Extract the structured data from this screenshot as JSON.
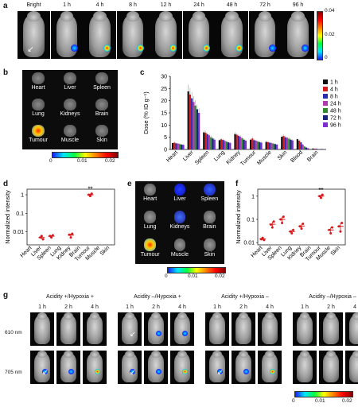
{
  "panels": {
    "a": "a",
    "b": "b",
    "c": "c",
    "d": "d",
    "e": "e",
    "f": "f",
    "g": "g"
  },
  "panel_a": {
    "timepoints": [
      "Bright",
      "1 h",
      "4 h",
      "8 h",
      "12 h",
      "24 h",
      "48 h",
      "72 h",
      "96 h"
    ],
    "colorbar_ticks": [
      "0.04",
      "0.02",
      "0"
    ]
  },
  "panel_b": {
    "organs": [
      "Heart",
      "Liver",
      "Spleen",
      "Lung",
      "Kidneys",
      "Brain",
      "Tumour",
      "Muscle",
      "Skin"
    ],
    "colorbar_ticks": [
      "0",
      "0.01",
      "0.02"
    ]
  },
  "panel_e": {
    "organs": [
      "Heart",
      "Liver",
      "Spleen",
      "Lung",
      "Kidneys",
      "Brain",
      "Tumour",
      "Muscle",
      "Skin"
    ],
    "colorbar_ticks": [
      "0",
      "0.01",
      "0.02"
    ]
  },
  "panel_g": {
    "conditions": [
      "Acidity +/Hypoxia +",
      "Acidity –/Hypoxia +",
      "Acidity +/Hypoxia –",
      "Acidity –/Hypoxia –"
    ],
    "times": [
      "1 h",
      "2 h",
      "4 h"
    ],
    "rows": [
      "610 nm",
      "705 nm"
    ],
    "colorbar_ticks": [
      "0",
      "0.01",
      "0.02"
    ]
  },
  "colors": {
    "series": [
      "#111111",
      "#d7191c",
      "#2c2cb0",
      "#b03ab0",
      "#2e8b2e",
      "#1a237e",
      "#7b2fd0"
    ],
    "marker": "#d7191c"
  },
  "chart_data": [
    {
      "panel": "c",
      "type": "bar",
      "ylabel": "Dose (% ID g⁻¹)",
      "ylim": [
        0,
        30
      ],
      "yticks": [
        "0",
        "5",
        "10",
        "15",
        "20",
        "25",
        "30"
      ],
      "categories": [
        "Heart",
        "Liver",
        "Spleen",
        "Lung",
        "Kidney",
        "Tumour",
        "Muscle",
        "Skin",
        "Blood",
        "Brain"
      ],
      "series": [
        {
          "name": "1 h",
          "values": [
            2.6,
            23.8,
            7.0,
            3.8,
            6.3,
            4.0,
            3.1,
            5.2,
            4.2,
            0.4
          ]
        },
        {
          "name": "4 h",
          "values": [
            2.8,
            22.5,
            6.8,
            4.2,
            6.0,
            4.5,
            3.0,
            5.5,
            3.6,
            0.3
          ]
        },
        {
          "name": "8 h",
          "values": [
            2.5,
            21.0,
            6.2,
            3.9,
            5.6,
            3.8,
            2.8,
            5.0,
            2.9,
            0.3
          ]
        },
        {
          "name": "24 h",
          "values": [
            2.4,
            19.5,
            5.8,
            3.5,
            5.2,
            3.6,
            2.6,
            4.8,
            2.0,
            0.2
          ]
        },
        {
          "name": "48 h",
          "values": [
            2.2,
            18.0,
            5.0,
            3.2,
            4.6,
            3.3,
            2.4,
            4.4,
            1.2,
            0.2
          ]
        },
        {
          "name": "72 h",
          "values": [
            2.0,
            16.5,
            4.5,
            2.9,
            4.0,
            3.0,
            2.2,
            4.0,
            0.8,
            0.2
          ]
        },
        {
          "name": "96 h",
          "values": [
            1.9,
            15.0,
            4.0,
            2.7,
            3.6,
            2.8,
            2.0,
            3.7,
            0.5,
            0.1
          ]
        }
      ],
      "legend": "right"
    },
    {
      "panel": "d",
      "type": "scatter",
      "ylabel": "Normalized intensity",
      "yscale": "log",
      "ylim": [
        0.002,
        2
      ],
      "yticks": [
        "1",
        "0.1",
        "0.01"
      ],
      "categories": [
        "Heart",
        "Liver",
        "Spleen",
        "Lung",
        "Kidney",
        "Brain",
        "Tumour",
        "Muscle",
        "Skin"
      ],
      "points": [
        {
          "category": "Liver",
          "values": [
            0.005,
            0.006,
            0.004
          ]
        },
        {
          "category": "Spleen",
          "values": [
            0.006,
            0.005,
            0.0065
          ]
        },
        {
          "category": "Kidney",
          "values": [
            0.007,
            0.005,
            0.008
          ]
        },
        {
          "category": "Tumour",
          "values": [
            1.0,
            0.85,
            1.15
          ]
        }
      ],
      "annotation": "**"
    },
    {
      "panel": "f",
      "type": "scatter",
      "ylabel": "Normalized intensity",
      "yscale": "log",
      "ylim": [
        0.008,
        2
      ],
      "yticks": [
        "1",
        "0.1",
        "0.01"
      ],
      "categories": [
        "Heart",
        "Liver",
        "Spleen",
        "Lung",
        "Kidney",
        "Brain",
        "Tumour",
        "Muscle",
        "Skin"
      ],
      "points": [
        {
          "category": "Heart",
          "values": [
            0.014,
            0.016,
            0.013
          ]
        },
        {
          "category": "Liver",
          "values": [
            0.06,
            0.045,
            0.08
          ]
        },
        {
          "category": "Spleen",
          "values": [
            0.1,
            0.07,
            0.13
          ]
        },
        {
          "category": "Lung",
          "values": [
            0.03,
            0.025,
            0.035
          ]
        },
        {
          "category": "Kidney",
          "values": [
            0.05,
            0.04,
            0.065
          ]
        },
        {
          "category": "Tumour",
          "values": [
            1.0,
            0.85,
            1.15
          ]
        },
        {
          "category": "Muscle",
          "values": [
            0.035,
            0.025,
            0.045
          ]
        },
        {
          "category": "Skin",
          "values": [
            0.05,
            0.03,
            0.07
          ]
        }
      ],
      "annotation": "**"
    }
  ]
}
